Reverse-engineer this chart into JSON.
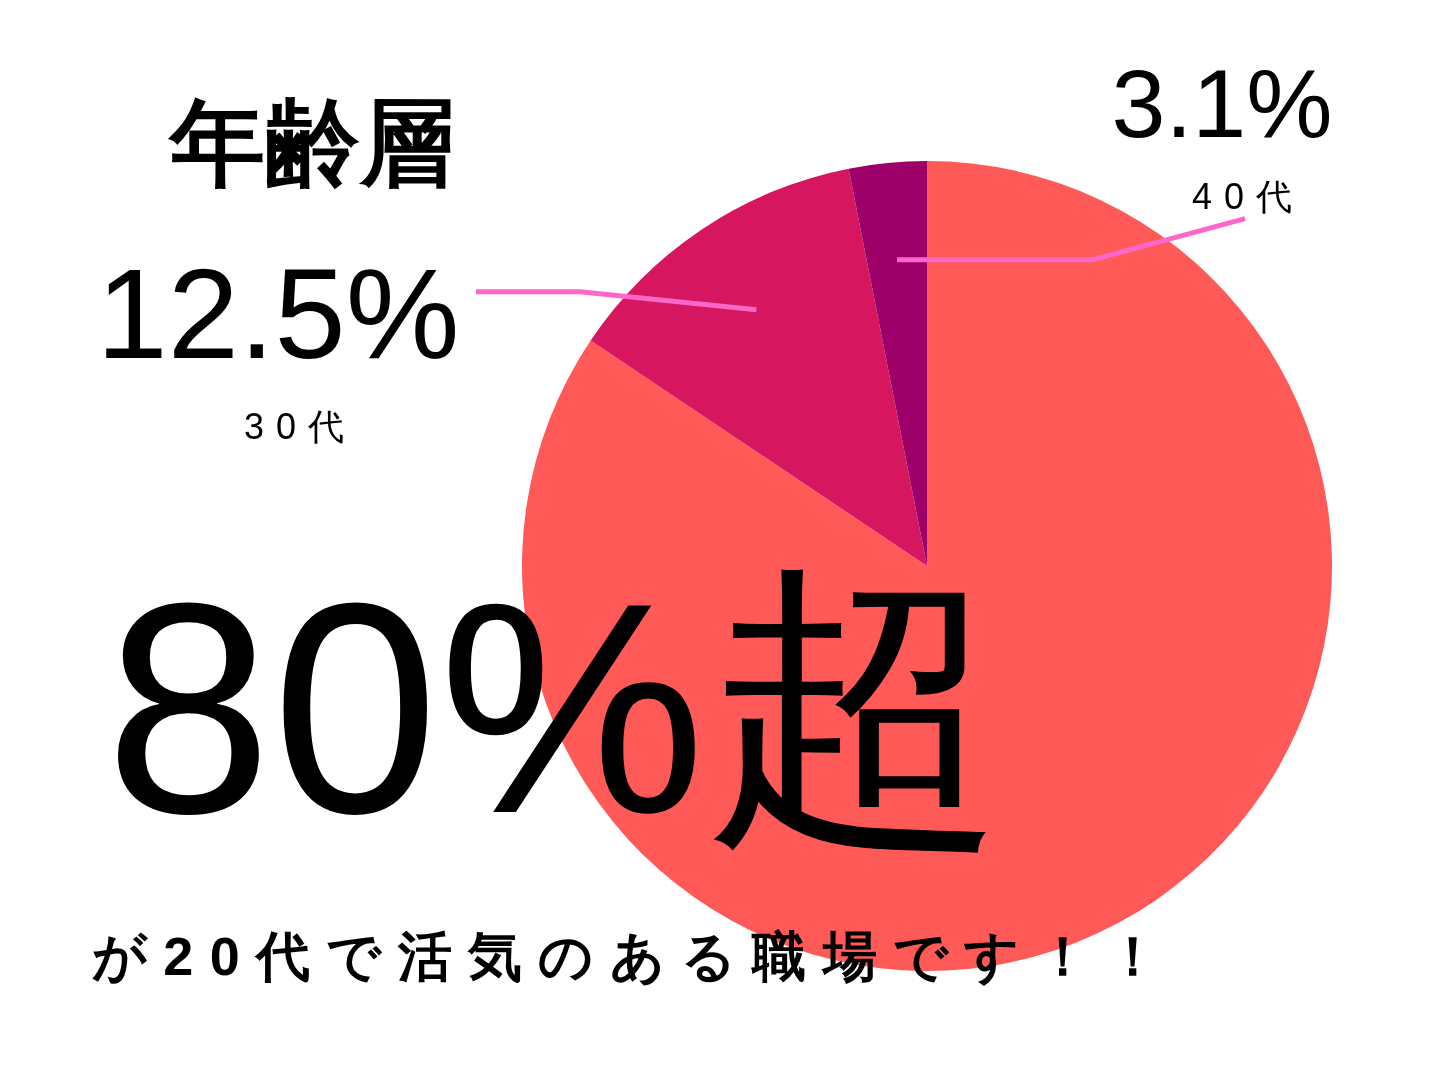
{
  "chart_data": {
    "type": "pie",
    "title": "年齢層",
    "categories": [
      null,
      "30代",
      "40代"
    ],
    "values": [
      84.4,
      12.5,
      3.1
    ],
    "colors": [
      "#ff5a57",
      "#d6175f",
      "#9c0068"
    ],
    "value_labels": [
      null,
      "12.5%",
      "3.1%"
    ],
    "annotations": [
      "80%超",
      "が20代で活気のある職場です！！"
    ]
  }
}
